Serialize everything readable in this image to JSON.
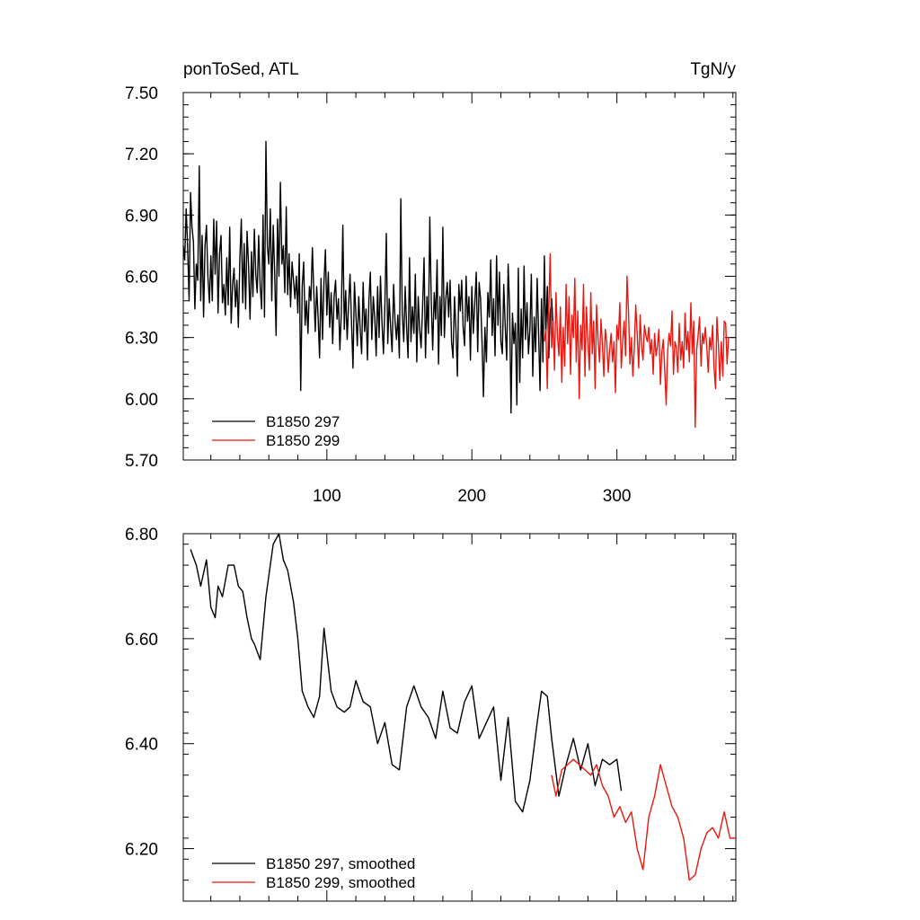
{
  "chart_data": [
    {
      "type": "line",
      "title": "ponToSed, ATL",
      "unit_label": "TgN/y",
      "xlabel": "",
      "ylabel": "",
      "xlim": [
        1,
        382
      ],
      "ylim": [
        5.7,
        7.5
      ],
      "xticks": [
        100,
        200,
        300
      ],
      "yticks": [
        "5.70",
        "6.00",
        "6.30",
        "6.60",
        "6.90",
        "7.20",
        "7.50"
      ],
      "grid": false,
      "legend_position": "bottom-left",
      "series": [
        {
          "name": "B1850 297",
          "color": "#000000",
          "x_start": 1,
          "values": [
            6.75,
            6.68,
            6.93,
            6.75,
            6.48,
            7.01,
            6.84,
            6.77,
            6.44,
            6.66,
            6.58,
            7.14,
            6.48,
            6.8,
            6.4,
            6.75,
            6.85,
            6.6,
            6.47,
            6.7,
            6.48,
            6.88,
            6.61,
            6.87,
            6.42,
            6.71,
            6.8,
            6.47,
            6.56,
            6.41,
            6.69,
            6.46,
            6.84,
            6.37,
            6.56,
            6.64,
            6.45,
            6.58,
            6.35,
            6.69,
            6.88,
            6.47,
            6.76,
            6.44,
            6.82,
            6.66,
            6.39,
            6.72,
            6.5,
            6.83,
            6.61,
            6.52,
            6.8,
            6.55,
            6.44,
            6.9,
            6.4,
            7.26,
            6.75,
            6.66,
            6.93,
            6.48,
            6.85,
            6.62,
            6.31,
            6.88,
            6.6,
            7.06,
            6.66,
            6.75,
            6.52,
            6.94,
            6.51,
            6.71,
            6.45,
            6.67,
            6.58,
            6.49,
            6.6,
            6.42,
            6.71,
            6.04,
            6.55,
            6.67,
            6.36,
            6.48,
            6.32,
            6.55,
            6.48,
            6.74,
            6.52,
            6.33,
            6.55,
            6.4,
            6.2,
            6.59,
            6.29,
            6.57,
            6.73,
            6.41,
            6.62,
            6.35,
            6.52,
            6.27,
            6.5,
            6.58,
            6.39,
            6.49,
            6.24,
            6.42,
            6.85,
            6.34,
            6.53,
            6.29,
            6.46,
            6.61,
            6.38,
            6.15,
            6.57,
            6.42,
            6.26,
            6.5,
            6.34,
            6.22,
            6.57,
            6.33,
            6.44,
            6.19,
            6.48,
            6.62,
            6.29,
            6.5,
            6.4,
            6.21,
            6.55,
            6.3,
            6.6,
            6.38,
            6.22,
            6.46,
            6.81,
            6.27,
            6.49,
            6.35,
            6.23,
            6.56,
            6.38,
            6.29,
            6.41,
            6.2,
            6.98,
            6.42,
            6.28,
            6.55,
            6.35,
            6.2,
            6.69,
            6.28,
            6.45,
            6.32,
            6.61,
            6.18,
            6.5,
            6.34,
            6.25,
            6.44,
            6.69,
            6.2,
            6.5,
            6.32,
            6.89,
            6.48,
            6.24,
            6.52,
            6.39,
            6.68,
            6.17,
            6.5,
            6.31,
            6.84,
            6.3,
            6.49,
            6.57,
            6.4,
            6.58,
            6.28,
            6.2,
            6.5,
            6.34,
            6.11,
            6.56,
            6.43,
            6.58,
            6.35,
            6.26,
            6.6,
            6.38,
            6.5,
            6.19,
            6.55,
            6.32,
            6.46,
            6.62,
            6.23,
            6.57,
            6.49,
            6.28,
            6.01,
            6.35,
            6.18,
            6.52,
            6.4,
            6.68,
            6.31,
            6.49,
            6.21,
            6.7,
            6.36,
            6.62,
            6.28,
            6.22,
            6.56,
            6.36,
            6.19,
            6.66,
            6.45,
            5.93,
            6.42,
            6.27,
            6.37,
            5.97,
            6.64,
            6.08,
            6.44,
            6.2,
            6.65,
            6.29,
            6.47,
            6.22,
            6.34,
            6.61,
            6.11,
            6.4,
            6.23,
            6.59,
            6.32,
            6.04,
            6.49,
            6.18,
            6.7,
            6.31,
            6.55,
            6.2,
            6.42,
            6.49,
            6.36
          ],
          "x_values_note": ""
        },
        {
          "name": "B1850 299",
          "color": "#e8170f",
          "x_start": 250,
          "values": [
            6.28,
            6.34,
            6.05,
            6.45,
            6.71,
            6.25,
            6.38,
            6.14,
            6.52,
            6.31,
            6.21,
            6.45,
            6.08,
            6.35,
            6.16,
            6.56,
            6.27,
            6.5,
            6.12,
            6.41,
            6.3,
            6.59,
            6.18,
            6.43,
            6.0,
            6.36,
            6.24,
            6.56,
            6.11,
            6.45,
            6.28,
            6.14,
            6.52,
            6.22,
            6.38,
            6.05,
            6.46,
            6.29,
            6.18,
            6.39,
            6.27,
            6.11,
            6.34,
            6.28,
            6.13,
            6.24,
            6.32,
            6.18,
            6.28,
            6.03,
            6.36,
            6.29,
            6.47,
            6.15,
            6.28,
            6.38,
            6.21,
            6.6,
            6.42,
            6.17,
            6.3,
            6.11,
            6.25,
            6.46,
            6.32,
            6.15,
            6.41,
            6.26,
            6.19,
            6.36,
            6.31,
            6.28,
            6.35,
            6.22,
            6.29,
            6.12,
            6.32,
            6.21,
            6.26,
            6.34,
            6.07,
            6.23,
            6.29,
            6.14,
            5.97,
            6.23,
            6.32,
            6.26,
            6.43,
            6.12,
            6.28,
            6.25,
            6.13,
            6.37,
            6.19,
            6.28,
            6.15,
            6.42,
            6.24,
            6.33,
            6.18,
            6.47,
            6.22,
            6.38,
            5.86,
            6.24,
            6.31,
            6.4,
            6.16,
            6.32,
            6.27,
            6.35,
            6.25,
            6.13,
            6.3,
            6.24,
            6.36,
            6.15,
            6.05,
            6.4,
            6.27,
            6.09,
            6.28,
            6.11,
            6.38,
            6.37,
            6.17,
            6.3
          ]
        }
      ]
    },
    {
      "type": "line",
      "title": "",
      "xlabel": "",
      "ylabel": "",
      "xlim": [
        1,
        382
      ],
      "ylim": [
        6.1,
        6.8
      ],
      "xticks": [],
      "yticks": [
        "6.20",
        "6.40",
        "6.60",
        "6.80"
      ],
      "grid": false,
      "legend_position": "bottom-left",
      "series": [
        {
          "name": "B1850 297, smoothed",
          "color": "#000000",
          "x": [
            6,
            10,
            13,
            17,
            20,
            23,
            25,
            28,
            32,
            36,
            39,
            42,
            45,
            48,
            50,
            54,
            58,
            63,
            67,
            70,
            73,
            77,
            80,
            83,
            87,
            91,
            95,
            98,
            103,
            107,
            112,
            116,
            120,
            125,
            130,
            135,
            140,
            145,
            150,
            155,
            160,
            165,
            170,
            175,
            180,
            185,
            190,
            195,
            200,
            205,
            210,
            215,
            220,
            225,
            230,
            235,
            240,
            245,
            248,
            252,
            255,
            260,
            265,
            270,
            275,
            280,
            285,
            290,
            295,
            300,
            303
          ],
          "values": [
            6.77,
            6.74,
            6.7,
            6.75,
            6.66,
            6.64,
            6.7,
            6.68,
            6.74,
            6.74,
            6.7,
            6.69,
            6.64,
            6.6,
            6.59,
            6.56,
            6.68,
            6.78,
            6.8,
            6.75,
            6.73,
            6.67,
            6.6,
            6.5,
            6.47,
            6.45,
            6.49,
            6.62,
            6.5,
            6.47,
            6.46,
            6.47,
            6.52,
            6.48,
            6.47,
            6.4,
            6.44,
            6.36,
            6.35,
            6.47,
            6.51,
            6.47,
            6.45,
            6.41,
            6.5,
            6.43,
            6.42,
            6.48,
            6.51,
            6.41,
            6.44,
            6.47,
            6.33,
            6.45,
            6.29,
            6.27,
            6.33,
            6.44,
            6.5,
            6.49,
            6.41,
            6.3,
            6.36,
            6.41,
            6.35,
            6.4,
            6.32,
            6.37,
            6.36,
            6.37,
            6.31
          ]
        },
        {
          "name": "B1850 299, smoothed",
          "color": "#e8170f",
          "x": [
            255,
            258,
            262,
            266,
            270,
            274,
            278,
            282,
            286,
            290,
            294,
            298,
            302,
            306,
            310,
            314,
            318,
            322,
            326,
            330,
            334,
            338,
            342,
            346,
            350,
            354,
            358,
            362,
            366,
            370,
            374,
            378,
            382
          ],
          "values": [
            6.34,
            6.3,
            6.35,
            6.36,
            6.37,
            6.36,
            6.35,
            6.34,
            6.36,
            6.32,
            6.3,
            6.26,
            6.28,
            6.25,
            6.27,
            6.2,
            6.16,
            6.26,
            6.3,
            6.36,
            6.32,
            6.28,
            6.26,
            6.22,
            6.14,
            6.15,
            6.2,
            6.23,
            6.24,
            6.22,
            6.27,
            6.22,
            6.22
          ]
        }
      ]
    }
  ]
}
